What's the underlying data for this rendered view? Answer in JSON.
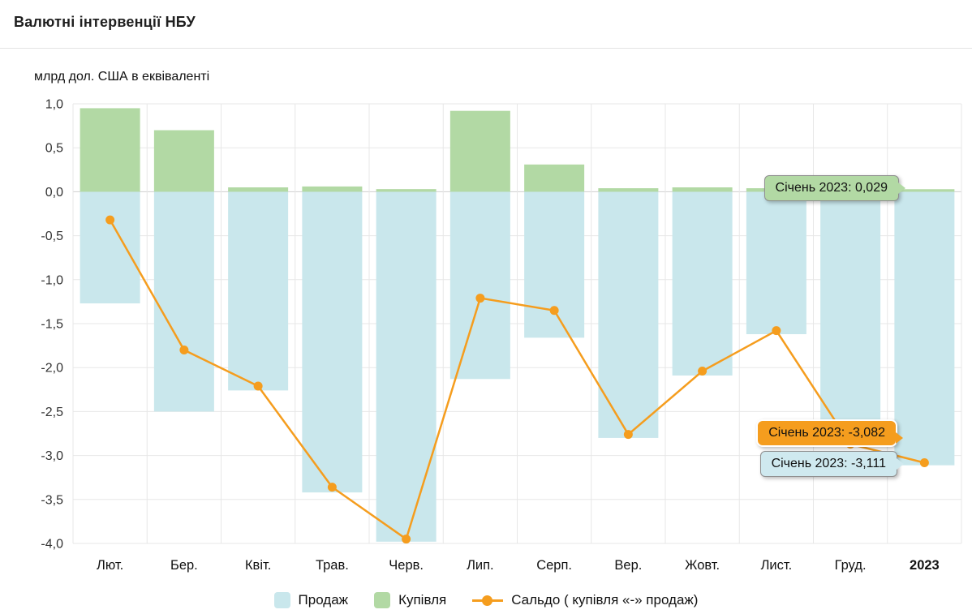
{
  "title": "Валютні інтервенції НБУ",
  "unit_label": "млрд дол. США в еквіваленті",
  "legend": {
    "sale": "Продаж",
    "purchase": "Купівля",
    "saldo": "Сальдо ( купівля «-» продаж)"
  },
  "tooltips": {
    "purchase": "Січень 2023: 0,029",
    "saldo": "Січень 2023: -3,082",
    "sale": "Січень 2023: -3,111"
  },
  "colors": {
    "sale": "#c9e7ec",
    "purchase": "#b2d9a4",
    "saldo": "#f59d1e",
    "grid": "#e7e7e7",
    "zero_line": "#cfcfcf",
    "tick_text": "#333333",
    "xlabel_text": "#111111"
  },
  "chart_data": {
    "type": "bar+line",
    "title": "Валютні інтервенції НБУ",
    "xlabel": "",
    "ylabel": "млрд дол. США в еквіваленті",
    "ylim": [
      -4.0,
      1.0
    ],
    "grid": true,
    "legend_position": "bottom",
    "categories": [
      "Лют.",
      "Бер.",
      "Квіт.",
      "Трав.",
      "Черв.",
      "Лип.",
      "Серп.",
      "Вер.",
      "Жовт.",
      "Лист.",
      "Груд.",
      "2023"
    ],
    "bold_categories": [
      "2023"
    ],
    "yticks": [
      {
        "value": 1.0,
        "label": "1,0"
      },
      {
        "value": 0.5,
        "label": "0,5"
      },
      {
        "value": 0.0,
        "label": "0,0"
      },
      {
        "value": -0.5,
        "label": "-0,5"
      },
      {
        "value": -1.0,
        "label": "-1,0"
      },
      {
        "value": -1.5,
        "label": "-1,5"
      },
      {
        "value": -2.0,
        "label": "-2,0"
      },
      {
        "value": -2.5,
        "label": "-2,5"
      },
      {
        "value": -3.0,
        "label": "-3,0"
      },
      {
        "value": -3.5,
        "label": "-3,5"
      },
      {
        "value": -4.0,
        "label": "-4,0"
      }
    ],
    "series": [
      {
        "name": "Продаж",
        "type": "bar",
        "values": [
          -1.27,
          -2.5,
          -2.26,
          -3.42,
          -3.98,
          -2.13,
          -1.66,
          -2.8,
          -2.09,
          -1.62,
          -2.9,
          -3.111
        ]
      },
      {
        "name": "Купівля",
        "type": "bar",
        "values": [
          0.95,
          0.7,
          0.05,
          0.06,
          0.03,
          0.92,
          0.31,
          0.04,
          0.05,
          0.04,
          0.03,
          0.029
        ]
      },
      {
        "name": "Сальдо ( купівля «-» продаж)",
        "type": "line",
        "values": [
          -0.32,
          -1.8,
          -2.21,
          -3.36,
          -3.95,
          -1.21,
          -1.35,
          -2.76,
          -2.04,
          -1.58,
          -2.87,
          -3.082
        ]
      }
    ]
  }
}
